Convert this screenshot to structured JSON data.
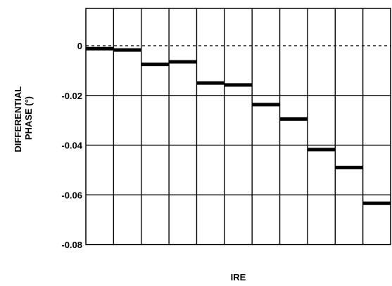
{
  "chart_data": {
    "type": "step",
    "xlabel": "IRE",
    "ylabel_lines": [
      "DIFFERENTIAL",
      "PHASE (°)"
    ],
    "ylim": [
      -0.08,
      0.015
    ],
    "y_ticks": [
      {
        "value": 0,
        "label": "0"
      },
      {
        "value": -0.02,
        "label": "-0.02"
      },
      {
        "value": -0.04,
        "label": "-0.04"
      },
      {
        "value": -0.06,
        "label": "-0.06"
      },
      {
        "value": -0.08,
        "label": "-0.08"
      }
    ],
    "x_divisions": 11,
    "grid": true,
    "reference_line": {
      "value": 0,
      "style": "dashed"
    },
    "series": [
      {
        "values": [
          -0.0012,
          -0.0017,
          -0.0075,
          -0.0065,
          -0.015,
          -0.0158,
          -0.0237,
          -0.0295,
          -0.0418,
          -0.049,
          -0.0634
        ]
      }
    ]
  }
}
